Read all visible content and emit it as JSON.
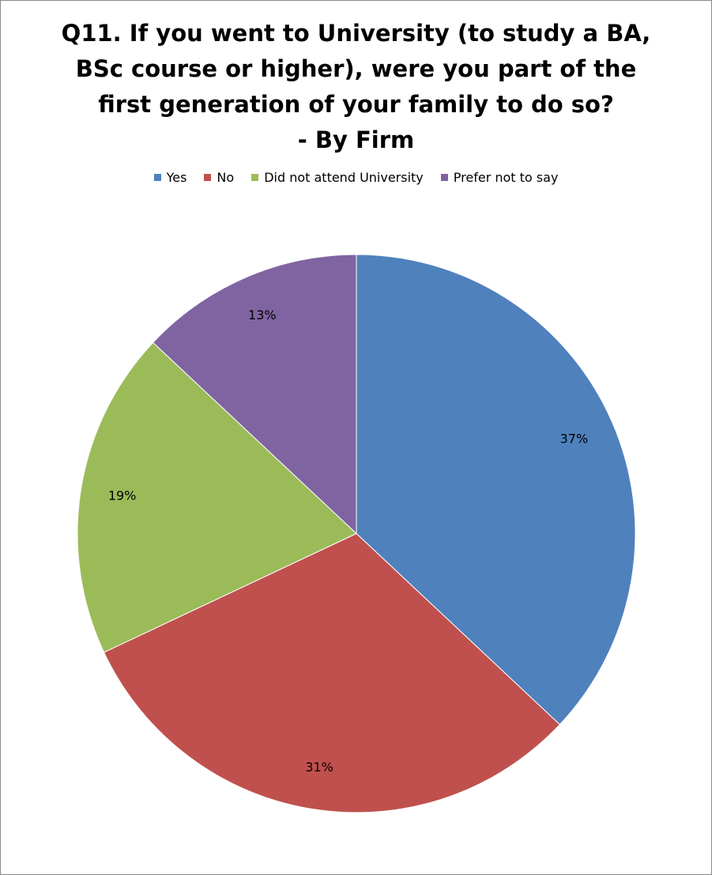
{
  "chart_data": {
    "type": "pie",
    "title_lines": [
      "Q11. If you went to University (to study a BA,",
      "BSc course or higher), were you part of the",
      "first generation of your family to do so?",
      "- By Firm"
    ],
    "categories": [
      "Yes",
      "No",
      "Did not attend University",
      "Prefer not to say"
    ],
    "values": [
      37,
      31,
      19,
      13
    ],
    "value_labels": [
      "37%",
      "31%",
      "19%",
      "13%"
    ],
    "colors": [
      "#4F81BD",
      "#C0504D",
      "#9BBB59",
      "#8064A2"
    ],
    "legend_position": "top",
    "start_angle": "12 o'clock",
    "direction": "clockwise"
  }
}
